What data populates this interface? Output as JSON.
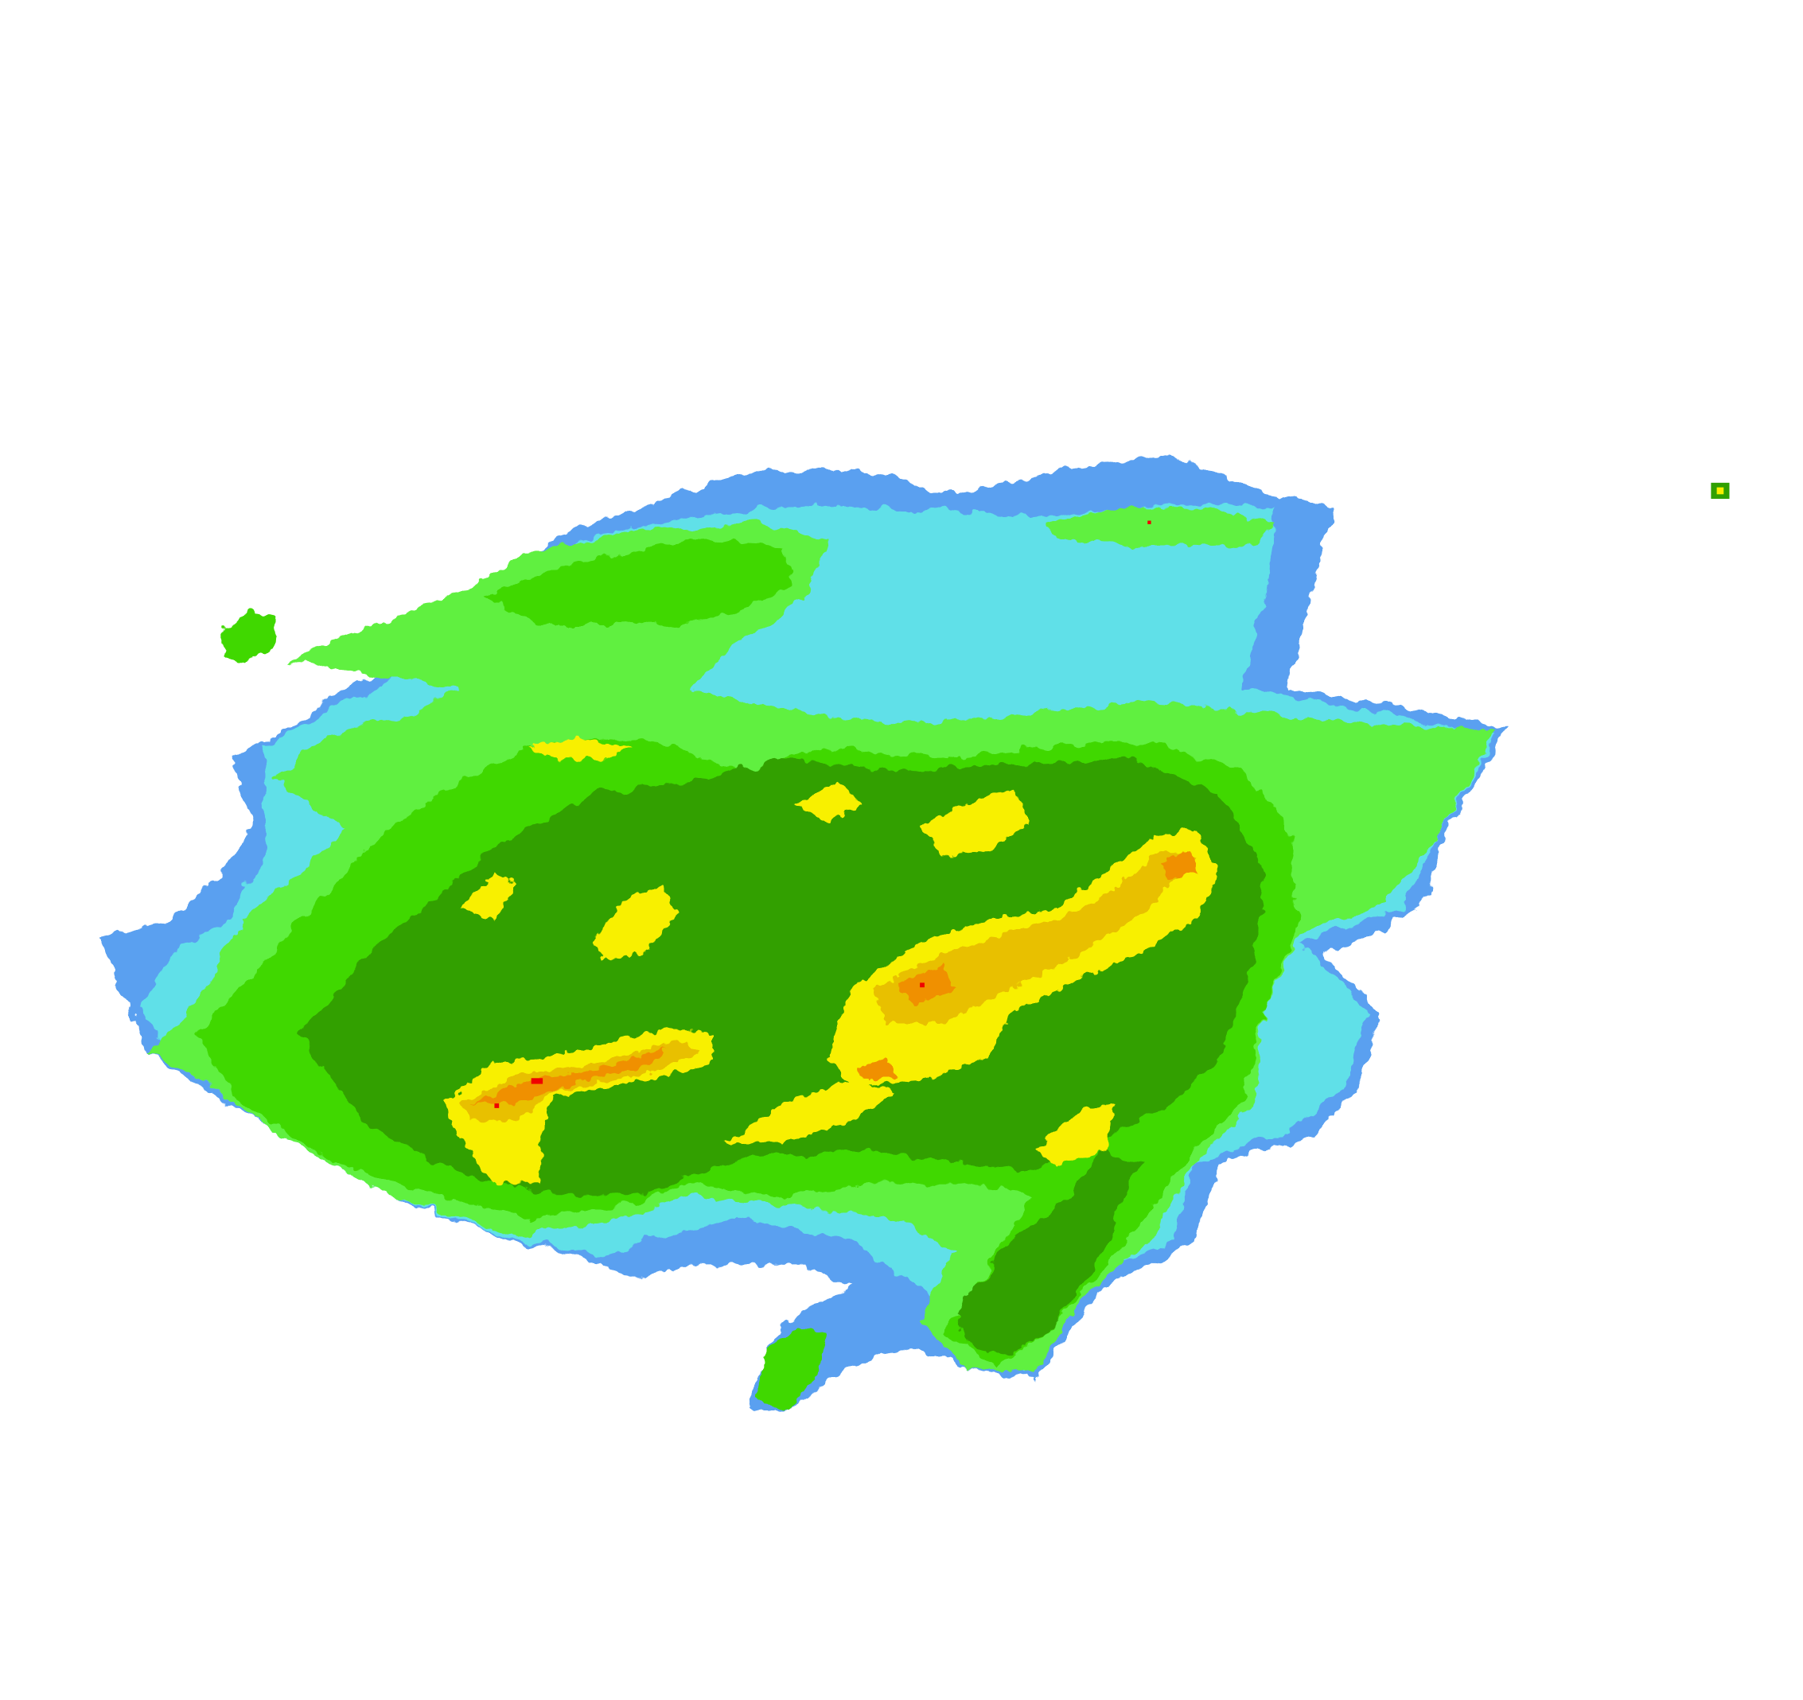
{
  "map": {
    "type": "radar-reflectivity",
    "background": "#ffffff",
    "palette": {
      "lightest": "#5aa0f0",
      "light": "#60e0e8",
      "low": "#60f040",
      "moderate": "#40d800",
      "moderate_high": "#30a000",
      "high": "#f8f000",
      "higher": "#e8c000",
      "very_high": "#f09000",
      "extreme": "#f00000"
    }
  }
}
